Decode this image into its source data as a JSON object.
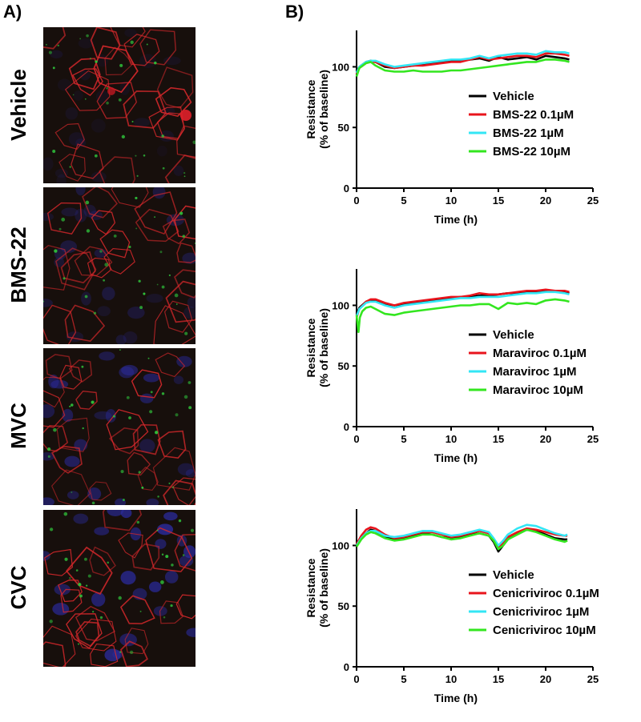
{
  "panels": {
    "a_label": "A)",
    "b_label": "B)"
  },
  "micrographs": [
    {
      "label": "Vehicle"
    },
    {
      "label": "BMS-22"
    },
    {
      "label": "MVC"
    },
    {
      "label": "CVC"
    }
  ],
  "colors": {
    "vehicle": "#000000",
    "low": "#e8141c",
    "mid": "#33e6f5",
    "high": "#33e61f",
    "membrane": "#d6282b",
    "nuclei": "#2a2a9a",
    "marker": "#2fbf3a"
  },
  "chart_data": [
    {
      "type": "line",
      "xlabel": "Time (h)",
      "ylabel_line1": "Resistance",
      "ylabel_line2": "(% of baseline)",
      "xlim": [
        0,
        25
      ],
      "ylim": [
        0,
        130
      ],
      "xticks": [
        "0",
        "5",
        "10",
        "15",
        "20",
        "25"
      ],
      "yticks": [
        "0",
        "50",
        "100"
      ],
      "legend_position": "lower-right",
      "series": [
        {
          "name": "Vehicle",
          "x": [
            0,
            0.3,
            1,
            1.5,
            2,
            3,
            4,
            5,
            6,
            7,
            8,
            9,
            10,
            11,
            12,
            13,
            14,
            15,
            16,
            17,
            18,
            19,
            20,
            21,
            22,
            22.5
          ],
          "values": [
            96,
            100,
            104,
            105,
            104,
            100,
            99,
            100,
            101,
            102,
            103,
            104,
            105,
            105,
            106,
            107,
            105,
            108,
            106,
            107,
            108,
            106,
            109,
            108,
            107,
            106
          ]
        },
        {
          "name": "BMS-22  0.1µM",
          "x": [
            0,
            0.3,
            1,
            1.5,
            2,
            3,
            4,
            5,
            6,
            7,
            8,
            9,
            10,
            11,
            12,
            13,
            14,
            15,
            16,
            17,
            18,
            19,
            20,
            21,
            22,
            22.5
          ],
          "values": [
            94,
            99,
            103,
            104,
            104,
            101,
            99,
            100,
            101,
            101,
            102,
            103,
            104,
            104,
            106,
            108,
            106,
            107,
            108,
            109,
            109,
            108,
            111,
            111,
            110,
            109
          ]
        },
        {
          "name": "BMS-22 1µM",
          "x": [
            0,
            0.3,
            1,
            1.5,
            2,
            3,
            4,
            5,
            6,
            7,
            8,
            9,
            10,
            11,
            12,
            13,
            14,
            15,
            16,
            17,
            18,
            19,
            20,
            21,
            22,
            22.5
          ],
          "values": [
            95,
            100,
            104,
            105,
            105,
            102,
            100,
            101,
            102,
            103,
            104,
            105,
            106,
            106,
            107,
            109,
            107,
            109,
            110,
            111,
            111,
            110,
            113,
            112,
            112,
            111
          ]
        },
        {
          "name": "BMS-22 10µM",
          "x": [
            0,
            0.3,
            1,
            1.5,
            2,
            3,
            4,
            5,
            6,
            7,
            8,
            9,
            10,
            11,
            12,
            13,
            14,
            15,
            16,
            17,
            18,
            19,
            20,
            21,
            22,
            22.5
          ],
          "values": [
            92,
            99,
            103,
            104,
            101,
            97,
            96,
            96,
            97,
            96,
            96,
            96,
            97,
            97,
            98,
            99,
            100,
            101,
            102,
            103,
            104,
            104,
            106,
            106,
            105,
            104
          ]
        }
      ]
    },
    {
      "type": "line",
      "xlabel": "Time (h)",
      "ylabel_line1": "Resistance",
      "ylabel_line2": "(% of baseline)",
      "xlim": [
        0,
        25
      ],
      "ylim": [
        0,
        130
      ],
      "xticks": [
        "0",
        "5",
        "10",
        "15",
        "20",
        "25"
      ],
      "yticks": [
        "0",
        "50",
        "100"
      ],
      "legend_position": "lower-right",
      "series": [
        {
          "name": "Vehicle",
          "x": [
            0,
            0.3,
            1,
            1.5,
            2,
            3,
            4,
            5,
            6,
            7,
            8,
            9,
            10,
            11,
            12,
            13,
            14,
            15,
            16,
            17,
            18,
            19,
            20,
            21,
            22,
            22.5
          ],
          "values": [
            92,
            98,
            103,
            104,
            104,
            101,
            100,
            101,
            102,
            103,
            104,
            105,
            106,
            107,
            107,
            108,
            108,
            109,
            110,
            110,
            111,
            111,
            112,
            112,
            111,
            110
          ]
        },
        {
          "name": "Maraviroc 0.1µM",
          "x": [
            0,
            0.3,
            1,
            1.5,
            2,
            3,
            4,
            5,
            6,
            7,
            8,
            9,
            10,
            11,
            12,
            13,
            14,
            15,
            16,
            17,
            18,
            19,
            20,
            21,
            22,
            22.5
          ],
          "values": [
            90,
            97,
            103,
            105,
            105,
            102,
            100,
            102,
            103,
            104,
            105,
            106,
            107,
            107,
            108,
            110,
            109,
            109,
            110,
            111,
            112,
            112,
            113,
            112,
            112,
            111
          ]
        },
        {
          "name": "Maraviroc 1µM",
          "x": [
            0,
            0.3,
            1,
            1.5,
            2,
            3,
            4,
            5,
            6,
            7,
            8,
            9,
            10,
            11,
            12,
            13,
            14,
            15,
            16,
            17,
            18,
            19,
            20,
            21,
            22,
            22.5
          ],
          "values": [
            91,
            97,
            102,
            103,
            103,
            100,
            98,
            100,
            101,
            102,
            103,
            104,
            105,
            106,
            106,
            107,
            107,
            107,
            108,
            109,
            110,
            110,
            111,
            111,
            110,
            109
          ]
        },
        {
          "name": "Maraviroc 10µM",
          "x": [
            0,
            0.2,
            0.35,
            0.6,
            1,
            1.5,
            2,
            3,
            4,
            5,
            6,
            7,
            8,
            9,
            10,
            11,
            12,
            13,
            14,
            15,
            16,
            17,
            18,
            19,
            20,
            21,
            22,
            22.5
          ],
          "values": [
            92,
            78,
            90,
            95,
            98,
            99,
            97,
            93,
            92,
            94,
            95,
            96,
            97,
            98,
            99,
            100,
            100,
            101,
            101,
            97,
            102,
            101,
            102,
            101,
            104,
            105,
            104,
            103
          ]
        }
      ]
    },
    {
      "type": "line",
      "xlabel": "Time (h)",
      "ylabel_line1": "Resistance",
      "ylabel_line2": "(% of baseline)",
      "xlim": [
        0,
        25
      ],
      "ylim": [
        0,
        130
      ],
      "xticks": [
        "0",
        "5",
        "10",
        "15",
        "20",
        "25"
      ],
      "yticks": [
        "0",
        "50",
        "100"
      ],
      "legend_position": "lower-right",
      "series": [
        {
          "name": "Vehicle",
          "x": [
            0,
            0.5,
            1,
            1.5,
            2,
            3,
            4,
            5,
            6,
            7,
            8,
            9,
            10,
            11,
            12,
            13,
            14,
            14.5,
            15,
            15.5,
            16,
            17,
            18,
            19,
            20,
            21,
            22,
            22.3
          ],
          "values": [
            100,
            106,
            110,
            113,
            112,
            107,
            105,
            106,
            108,
            110,
            109,
            107,
            106,
            107,
            109,
            110,
            108,
            103,
            95,
            100,
            105,
            110,
            113,
            112,
            109,
            106,
            105,
            105
          ]
        },
        {
          "name": "Cenicriviroc 0.1µM",
          "x": [
            0,
            0.5,
            1,
            1.5,
            2,
            3,
            4,
            5,
            6,
            7,
            8,
            9,
            10,
            11,
            12,
            13,
            14,
            14.5,
            15,
            15.5,
            16,
            17,
            18,
            19,
            20,
            21,
            22,
            22.3
          ],
          "values": [
            101,
            108,
            113,
            115,
            114,
            109,
            106,
            107,
            109,
            111,
            111,
            109,
            107,
            108,
            110,
            112,
            110,
            105,
            98,
            102,
            107,
            111,
            114,
            113,
            111,
            109,
            108,
            108
          ]
        },
        {
          "name": "Cenicriviroc 1µM",
          "x": [
            0,
            0.5,
            1,
            1.5,
            2,
            3,
            4,
            5,
            6,
            7,
            8,
            9,
            10,
            11,
            12,
            13,
            14,
            14.5,
            15,
            15.5,
            16,
            17,
            18,
            19,
            20,
            21,
            22,
            22.3
          ],
          "values": [
            100,
            106,
            110,
            112,
            112,
            108,
            107,
            108,
            110,
            112,
            112,
            110,
            108,
            109,
            111,
            113,
            111,
            106,
            100,
            104,
            109,
            114,
            117,
            116,
            113,
            110,
            108,
            109
          ]
        },
        {
          "name": "Cenicriviroc 10µM",
          "x": [
            0,
            0.5,
            1,
            1.5,
            2,
            3,
            4,
            5,
            6,
            7,
            8,
            9,
            10,
            11,
            12,
            13,
            14,
            14.5,
            15,
            15.5,
            16,
            17,
            18,
            19,
            20,
            21,
            22,
            22.3
          ],
          "values": [
            99,
            105,
            109,
            111,
            110,
            106,
            104,
            105,
            107,
            109,
            109,
            107,
            105,
            106,
            108,
            110,
            108,
            104,
            97,
            100,
            105,
            109,
            113,
            111,
            108,
            105,
            103,
            104
          ]
        }
      ]
    }
  ]
}
